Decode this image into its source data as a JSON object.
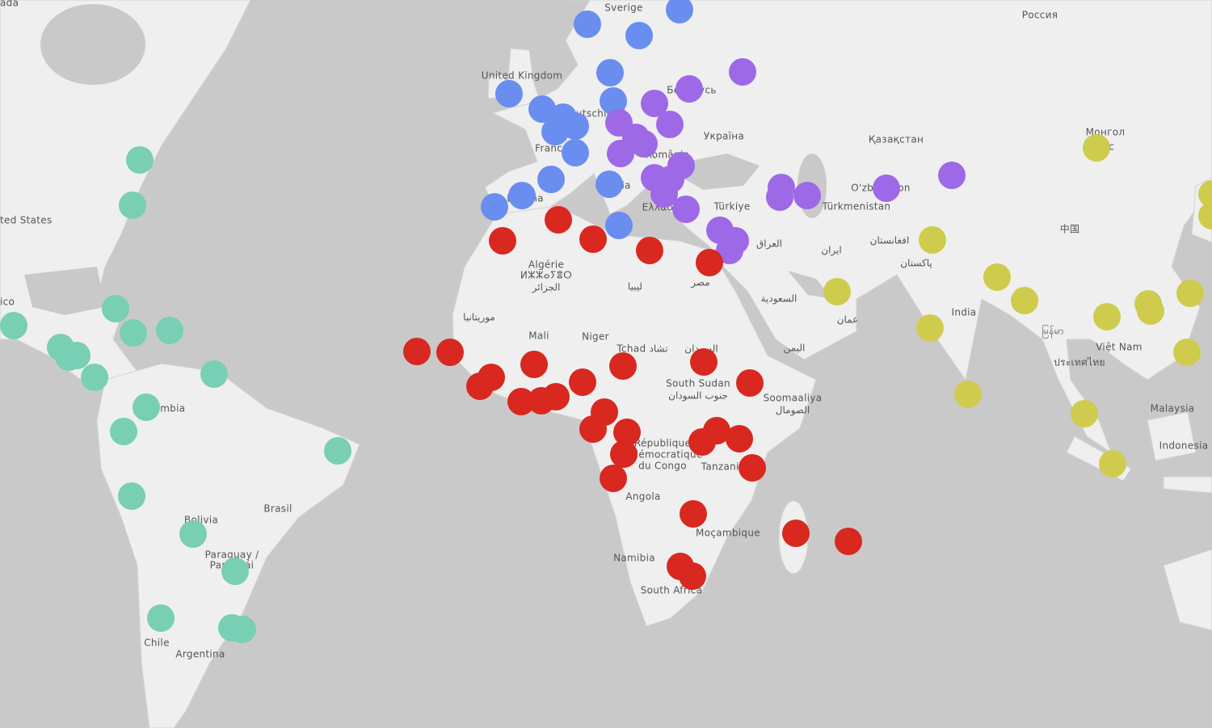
{
  "map": {
    "labels": [
      "ada",
      "Sverige",
      "Россия",
      "United Kingdom",
      "Беларусь",
      "Deutschland",
      "Україна",
      "Қазақстан",
      "Монгол",
      "улс",
      "France",
      "România",
      "Italia",
      "España",
      "O'zbekiston",
      "Türkmenistan",
      "Ελλάδα",
      "Türkiye",
      "中国",
      "ted States",
      "Algérie",
      "ⵍⵣⵣⴰⵢⴻⵔ",
      "الجزائر",
      "ليبيا",
      "مصر",
      "العراق",
      "ایران",
      "افغانستان",
      "پاکستان",
      "India",
      "السعودية",
      "عمان",
      "موريتانيا",
      "Mali",
      "Niger",
      "Tchad تشاد",
      "السودان",
      "اليمن",
      "South Sudan",
      "جنوب السودان",
      "Soomaaliya",
      "الصومال",
      "Việt Nam",
      "ประเทศไทย",
      "မြန်မာ",
      "Malaysia",
      "Indonesia",
      "République",
      "démocratique",
      "du Congo",
      "Tanzania",
      "Angola",
      "Brasil",
      "Bolivia",
      "Paraguay /",
      "Paraguái",
      "Chile",
      "Argentina",
      "Moçambique",
      "Namibia",
      "South Africa",
      "ico",
      "Colombia"
    ]
  }
}
